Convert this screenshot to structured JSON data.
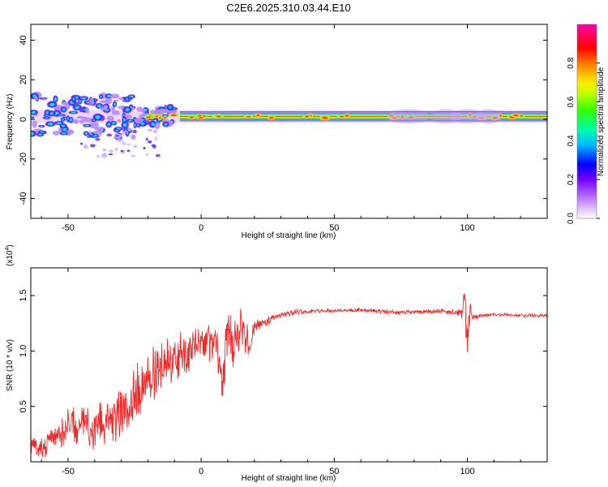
{
  "figure_title": "C2E6.2025.310.03.44.E10",
  "colors": {
    "snr_line": "#ee2b2b",
    "frame": "#000000",
    "band_core": "#ff2a4a",
    "band_edge": "#8a2bff"
  },
  "chart_data": [
    {
      "type": "heatmap",
      "title": "C2E6.2025.310.03.44.E10",
      "xlabel": "Height of straight line (km)",
      "ylabel": "Frequency (Hz)",
      "xlim": [
        -64,
        130
      ],
      "ylim": [
        -50,
        48
      ],
      "x_ticks": [
        -50,
        0,
        50,
        100
      ],
      "y_ticks": [
        -40,
        -20,
        0,
        20,
        40
      ],
      "colorbar": {
        "label": "Normalized spectral amplitude",
        "range": [
          0.0,
          1.0
        ],
        "ticks": [
          "0.0",
          "0.2",
          "0.4",
          "0.6",
          "0.8"
        ],
        "tick_values": [
          0.0,
          0.2,
          0.4,
          0.6,
          0.8
        ]
      },
      "band": {
        "center_hz": 1.5,
        "half_width_hz": 2.0,
        "x_start": -64,
        "x_end": 130
      },
      "blobs_x_range": [
        -64,
        -10
      ],
      "blobs_y_range": [
        -10,
        12
      ]
    },
    {
      "type": "line",
      "xlabel": "Height of straight line (km)",
      "ylabel": "SNR (10 * v/v)",
      "y_multiplier": "(x10^4)",
      "y_multiplier_base": "(x10",
      "y_multiplier_exp": "4",
      "y_multiplier_close": ")",
      "xlim": [
        -64,
        130
      ],
      "ylim": [
        0.0,
        1.75
      ],
      "x_ticks": [
        -50,
        0,
        50,
        100
      ],
      "y_ticks": [
        0.5,
        1.0,
        1.5
      ],
      "y_tick_labels": [
        "0.5",
        "1.0",
        "1.5"
      ],
      "series": [
        {
          "name": "SNR",
          "x": [
            -64,
            -60,
            -55,
            -50,
            -45,
            -40,
            -35,
            -30,
            -25,
            -20,
            -15,
            -10,
            -5,
            0,
            5,
            8,
            10,
            13,
            15,
            18,
            20,
            25,
            30,
            35,
            40,
            50,
            60,
            70,
            80,
            90,
            95,
            98,
            99,
            100,
            101,
            102,
            105,
            110,
            120,
            130
          ],
          "values": [
            0.15,
            0.12,
            0.25,
            0.32,
            0.34,
            0.3,
            0.38,
            0.45,
            0.62,
            0.75,
            0.85,
            0.95,
            1.0,
            1.05,
            1.12,
            0.75,
            1.15,
            1.0,
            1.25,
            1.05,
            1.22,
            1.27,
            1.33,
            1.35,
            1.36,
            1.36,
            1.37,
            1.35,
            1.35,
            1.36,
            1.35,
            1.32,
            1.55,
            1.0,
            1.4,
            1.3,
            1.32,
            1.33,
            1.32,
            1.32
          ],
          "noise_amplitude": [
            0.1,
            0.12,
            0.16,
            0.18,
            0.2,
            0.2,
            0.22,
            0.25,
            0.26,
            0.26,
            0.24,
            0.22,
            0.2,
            0.15,
            0.22,
            0.25,
            0.25,
            0.3,
            0.25,
            0.12,
            0.06,
            0.04,
            0.03,
            0.025,
            0.02,
            0.02,
            0.02,
            0.02,
            0.02,
            0.025,
            0.03,
            0.05,
            0.14,
            0.25,
            0.08,
            0.03,
            0.02,
            0.015,
            0.015,
            0.015
          ]
        }
      ]
    }
  ]
}
